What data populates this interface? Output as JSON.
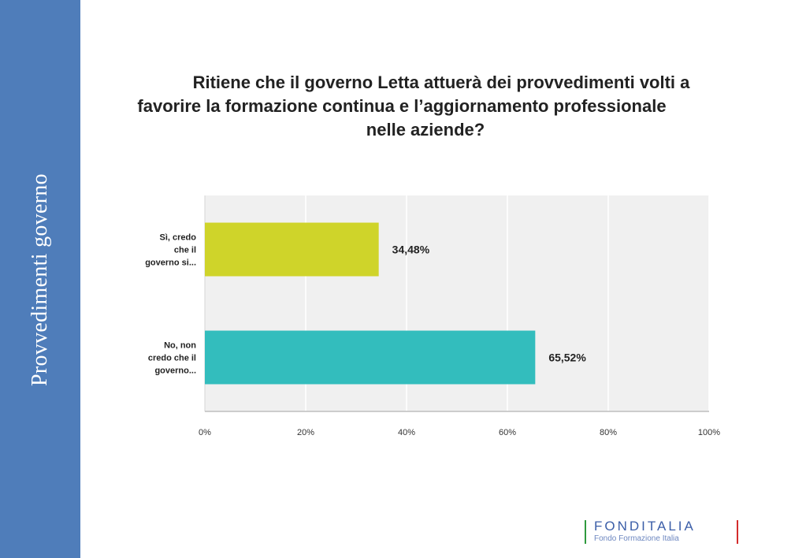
{
  "sidebar": {
    "title": "Provvedimenti governo",
    "color": "#4f7dba"
  },
  "chart_data": {
    "type": "bar",
    "orientation": "horizontal",
    "title_lines": [
      "Ritiene che il governo Letta attuerà dei provvedimenti volti a",
      "favorire la formazione continua e l’aggiornamento professionale",
      "nelle aziende?"
    ],
    "categories": [
      [
        "Sì, credo",
        "che il",
        "governo si..."
      ],
      [
        "No, non",
        "credo che il",
        "governo..."
      ]
    ],
    "values": [
      34.48,
      65.52
    ],
    "value_labels": [
      "34,48%",
      "65,52%"
    ],
    "colors": [
      "#cfd42a",
      "#33bdbd"
    ],
    "xlim": [
      0,
      100
    ],
    "xticks": [
      "0%",
      "20%",
      "40%",
      "60%",
      "80%",
      "100%"
    ],
    "grid": true,
    "plot_background": "#f0f0f0"
  },
  "logo": {
    "name": "FONDITALIA",
    "subtitle": "Fondo Formazione Italia"
  }
}
